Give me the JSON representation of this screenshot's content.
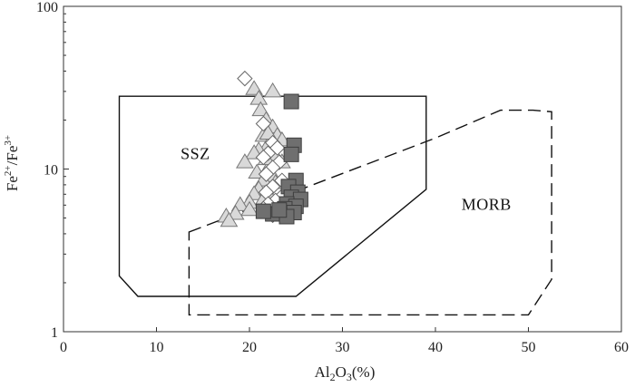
{
  "chart_data": {
    "type": "scatter",
    "xlabel_parts": [
      "Al",
      "2",
      "O",
      "3",
      "(%)"
    ],
    "ylabel_parts": [
      "Fe",
      "2+",
      "/Fe",
      "3+"
    ],
    "xlim": [
      0,
      60
    ],
    "ylim": [
      1,
      100
    ],
    "yscale": "log",
    "x_ticks": [
      "0",
      "10",
      "20",
      "30",
      "40",
      "50",
      "60"
    ],
    "y_ticks": [
      "1",
      "10",
      "100"
    ],
    "regions": [
      {
        "name": "SSZ",
        "style": "solid",
        "polygon": [
          [
            6,
            28
          ],
          [
            39,
            28
          ],
          [
            39,
            7.5
          ],
          [
            25,
            1.65
          ],
          [
            8,
            1.65
          ],
          [
            6,
            2.2
          ]
        ],
        "label_at": [
          12.6,
          11.5
        ]
      },
      {
        "name": "MORB",
        "style": "dashed",
        "polygon": [
          [
            13.5,
            4.1
          ],
          [
            40,
            15.5
          ],
          [
            47,
            23
          ],
          [
            50.5,
            23
          ],
          [
            52.5,
            22.5
          ],
          [
            52.5,
            2.1
          ],
          [
            50,
            1.27
          ],
          [
            13.5,
            1.27
          ]
        ],
        "label_at": [
          42.8,
          5.6
        ]
      }
    ],
    "series": [
      {
        "marker": "triangle",
        "fill": "#d9d9d9",
        "stroke": "#777777",
        "points": [
          [
            20.5,
            31
          ],
          [
            22.5,
            30
          ],
          [
            21,
            27
          ],
          [
            21.2,
            23
          ],
          [
            21.8,
            20
          ],
          [
            22.5,
            18
          ],
          [
            23,
            16
          ],
          [
            21.5,
            16
          ],
          [
            22,
            14
          ],
          [
            21,
            13
          ],
          [
            20.5,
            12.5
          ],
          [
            22.8,
            12
          ],
          [
            23.5,
            11
          ],
          [
            19.5,
            11
          ],
          [
            22,
            10
          ],
          [
            20.8,
            9.5
          ],
          [
            22.5,
            9
          ],
          [
            21.5,
            8.5
          ],
          [
            21,
            7.5
          ],
          [
            20.5,
            7
          ],
          [
            22,
            7
          ],
          [
            21.5,
            6.5
          ],
          [
            20,
            6.2
          ],
          [
            19,
            6
          ],
          [
            20,
            5.6
          ],
          [
            18.5,
            5.3
          ],
          [
            17.5,
            5.1
          ],
          [
            17.8,
            4.8
          ],
          [
            22,
            16.5
          ],
          [
            23.5,
            15
          ],
          [
            21.8,
            11.5
          ],
          [
            22.8,
            8.2
          ]
        ]
      },
      {
        "marker": "diamond",
        "fill": "#ffffff",
        "stroke": "#666666",
        "points": [
          [
            19.5,
            36
          ],
          [
            21.5,
            19
          ],
          [
            22.5,
            14.5
          ],
          [
            23,
            13.5
          ],
          [
            22,
            12.5
          ],
          [
            21.5,
            11.8
          ],
          [
            23.2,
            11
          ],
          [
            22.5,
            10.2
          ],
          [
            21.8,
            9.3
          ],
          [
            23.5,
            8.5
          ],
          [
            22.5,
            7.8
          ],
          [
            21.8,
            7.2
          ],
          [
            23.5,
            6.8
          ],
          [
            22.8,
            6.4
          ],
          [
            22,
            6.1
          ],
          [
            21.5,
            5.7
          ],
          [
            23.2,
            5.5
          ],
          [
            24,
            5.3
          ],
          [
            22.5,
            5.2
          ]
        ]
      },
      {
        "marker": "square",
        "fill": "#6f6f6f",
        "stroke": "#3d3d3d",
        "points": [
          [
            24.5,
            26
          ],
          [
            24.8,
            14
          ],
          [
            24.5,
            12.3
          ],
          [
            25,
            8.5
          ],
          [
            24.2,
            7.8
          ],
          [
            25.2,
            7.2
          ],
          [
            24.5,
            6.7
          ],
          [
            25.5,
            6.5
          ],
          [
            24,
            6.1
          ],
          [
            25,
            5.9
          ],
          [
            23.8,
            5.7
          ],
          [
            24.8,
            5.4
          ],
          [
            22.5,
            5.3
          ],
          [
            21.5,
            5.5
          ],
          [
            24,
            5.1
          ],
          [
            23.2,
            5.6
          ]
        ]
      }
    ]
  }
}
